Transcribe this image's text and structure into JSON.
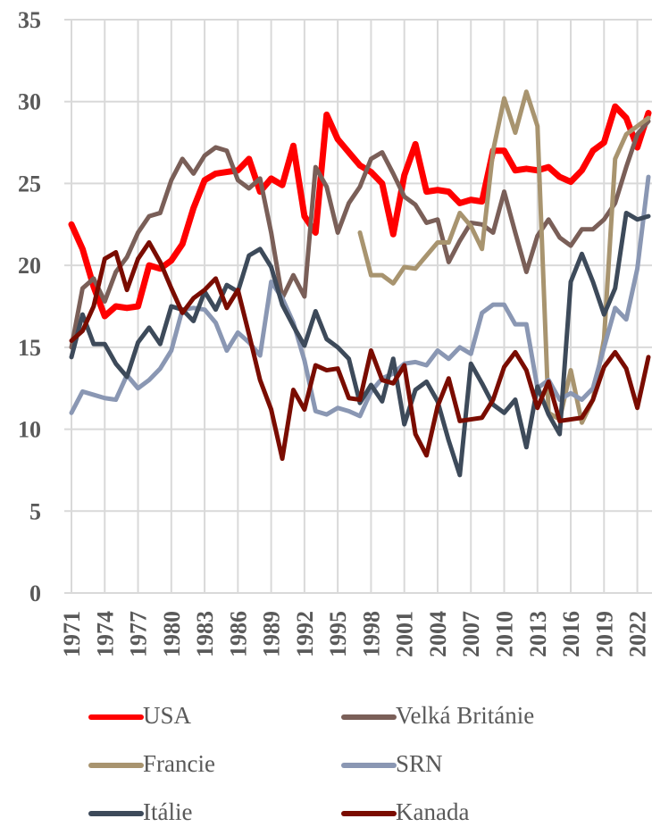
{
  "chart_data": {
    "type": "line",
    "x": [
      1971,
      1972,
      1973,
      1974,
      1975,
      1976,
      1977,
      1978,
      1979,
      1980,
      1981,
      1982,
      1983,
      1984,
      1985,
      1986,
      1987,
      1988,
      1989,
      1990,
      1991,
      1992,
      1993,
      1994,
      1995,
      1996,
      1997,
      1998,
      1999,
      2000,
      2001,
      2002,
      2003,
      2004,
      2005,
      2006,
      2007,
      2008,
      2009,
      2010,
      2011,
      2012,
      2013,
      2014,
      2015,
      2016,
      2017,
      2018,
      2019,
      2020,
      2021,
      2022,
      2023
    ],
    "xlim": [
      1971,
      2023
    ],
    "xticks": [
      1971,
      1974,
      1977,
      1980,
      1983,
      1986,
      1989,
      1992,
      1995,
      1998,
      2001,
      2004,
      2007,
      2010,
      2013,
      2016,
      2019,
      2022
    ],
    "ylim": [
      0,
      35
    ],
    "yticks": [
      0,
      5,
      10,
      15,
      20,
      25,
      30,
      35
    ],
    "grid": true,
    "legend": "bottom",
    "series": [
      {
        "name": "USA",
        "color": "#ff0000",
        "values": [
          22.5,
          21.0,
          18.7,
          16.9,
          17.5,
          17.4,
          17.5,
          20.0,
          19.8,
          20.3,
          21.3,
          23.5,
          25.2,
          25.6,
          25.7,
          25.8,
          26.5,
          24.5,
          25.3,
          24.9,
          27.3,
          23.0,
          22.0,
          29.2,
          27.7,
          26.9,
          26.1,
          25.7,
          25.0,
          21.9,
          25.5,
          27.4,
          24.5,
          24.6,
          24.5,
          23.8,
          24.0,
          23.9,
          27.0,
          27.0,
          25.8,
          25.9,
          25.8,
          26.0,
          25.4,
          25.1,
          25.8,
          27.0,
          27.5,
          29.7,
          29.0,
          27.2,
          29.3
        ]
      },
      {
        "name": "Velká Británie",
        "color": "#7a5f58",
        "values": [
          15.0,
          18.6,
          19.2,
          17.8,
          19.6,
          20.5,
          22.0,
          23.0,
          23.2,
          25.2,
          26.5,
          25.6,
          26.7,
          27.2,
          27.0,
          25.2,
          24.7,
          25.3,
          22.0,
          18.0,
          19.4,
          18.1,
          26.0,
          24.8,
          22.0,
          23.8,
          24.8,
          26.5,
          26.9,
          25.6,
          24.2,
          23.7,
          22.6,
          22.8,
          20.2,
          21.5,
          22.6,
          22.5,
          22.0,
          24.5,
          22.0,
          19.6,
          21.8,
          22.8,
          21.7,
          21.2,
          22.2,
          22.2,
          22.8,
          23.8,
          26.0,
          28.0,
          28.8
        ]
      },
      {
        "name": "Francie",
        "color": "#a8946f",
        "values": [
          null,
          null,
          null,
          null,
          null,
          null,
          null,
          null,
          null,
          null,
          null,
          null,
          null,
          null,
          null,
          null,
          null,
          null,
          null,
          null,
          null,
          null,
          null,
          null,
          null,
          null,
          22.0,
          19.4,
          19.4,
          18.9,
          19.9,
          19.8,
          20.6,
          21.4,
          21.4,
          23.2,
          22.4,
          21.0,
          27.0,
          30.2,
          28.1,
          30.6,
          28.5,
          11.0,
          10.6,
          13.6,
          10.4,
          11.8,
          15.5,
          26.5,
          28.0,
          28.5,
          29.0
        ]
      },
      {
        "name": "SRN",
        "color": "#8a97b3",
        "values": [
          11.0,
          12.3,
          12.1,
          11.9,
          11.8,
          13.3,
          12.5,
          13.0,
          13.7,
          14.8,
          17.3,
          17.4,
          17.3,
          16.5,
          14.8,
          15.9,
          15.3,
          14.5,
          19.0,
          18.0,
          16.5,
          14.2,
          11.1,
          10.9,
          11.3,
          11.1,
          10.8,
          12.3,
          13.1,
          13.4,
          14.0,
          14.1,
          13.9,
          14.8,
          14.3,
          15.0,
          14.6,
          17.1,
          17.6,
          17.6,
          16.4,
          16.4,
          12.5,
          13.0,
          11.8,
          12.2,
          11.8,
          12.5,
          15.0,
          17.4,
          16.7,
          19.8,
          25.4
        ]
      },
      {
        "name": "Itálie",
        "color": "#3d4a5a",
        "values": [
          14.4,
          17.0,
          15.2,
          15.2,
          14.0,
          13.2,
          15.3,
          16.2,
          15.2,
          17.5,
          17.3,
          16.6,
          18.4,
          17.3,
          18.8,
          18.4,
          20.6,
          21.0,
          19.9,
          17.6,
          16.3,
          15.1,
          17.2,
          15.5,
          15.0,
          14.3,
          11.6,
          12.7,
          11.7,
          14.3,
          10.3,
          12.4,
          12.9,
          11.7,
          9.3,
          7.2,
          14.0,
          12.8,
          11.5,
          11.0,
          11.8,
          8.9,
          12.6,
          10.9,
          9.7,
          19.0,
          20.7,
          19.0,
          17.0,
          18.6,
          23.2,
          22.8,
          23.0
        ]
      },
      {
        "name": "Kanada",
        "color": "#7a0c00",
        "values": [
          15.4,
          16.0,
          17.5,
          20.4,
          20.8,
          18.5,
          20.4,
          21.4,
          20.2,
          18.6,
          17.1,
          18.0,
          18.5,
          19.2,
          17.4,
          18.5,
          15.8,
          13.0,
          11.2,
          8.2,
          12.4,
          11.2,
          13.9,
          13.6,
          13.7,
          11.9,
          11.8,
          14.8,
          13.0,
          12.8,
          13.9,
          9.7,
          8.4,
          11.4,
          13.1,
          10.5,
          10.6,
          10.7,
          11.8,
          13.8,
          14.7,
          13.6,
          11.3,
          12.9,
          10.5,
          10.6,
          10.7,
          11.8,
          13.8,
          14.7,
          13.7,
          11.3,
          14.4
        ]
      }
    ]
  }
}
